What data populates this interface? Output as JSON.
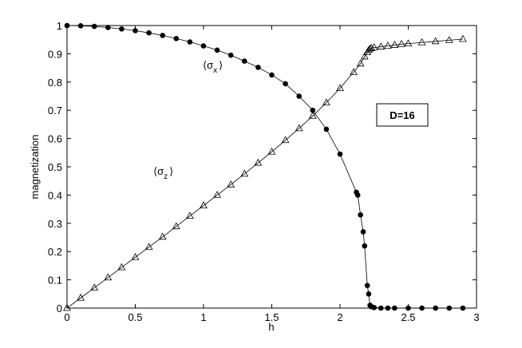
{
  "chart_data": {
    "type": "scatter",
    "x_label": "h",
    "y_label": "magnetization",
    "xlim": [
      0,
      3
    ],
    "ylim": [
      0,
      1
    ],
    "xticks": [
      0,
      0.5,
      1,
      1.5,
      2,
      2.5,
      3
    ],
    "yticks": [
      0,
      0.1,
      0.2,
      0.3,
      0.4,
      0.5,
      0.6,
      0.7,
      0.8,
      0.9,
      1
    ],
    "grid": false,
    "annotations": [
      {
        "base": "⟨σ",
        "sub": "x",
        "close": "⟩"
      },
      {
        "base": "⟨σ",
        "sub": "z",
        "close": "⟩"
      },
      {
        "text": "D=16",
        "boxed": true
      }
    ],
    "series": [
      {
        "marker": "circle",
        "color": "#000000",
        "x": [
          0,
          0.1,
          0.2,
          0.3,
          0.4,
          0.5,
          0.6,
          0.7,
          0.8,
          0.9,
          1.0,
          1.1,
          1.2,
          1.3,
          1.4,
          1.5,
          1.6,
          1.7,
          1.8,
          1.9,
          2.0,
          2.12,
          2.13,
          2.15,
          2.17,
          2.18,
          2.2,
          2.21,
          2.22,
          2.23,
          2.25,
          2.3,
          2.35,
          2.4,
          2.5,
          2.6,
          2.7,
          2.8,
          2.9
        ],
        "values": [
          1,
          0.999,
          0.997,
          0.993,
          0.988,
          0.982,
          0.974,
          0.965,
          0.954,
          0.942,
          0.928,
          0.913,
          0.895,
          0.874,
          0.852,
          0.825,
          0.794,
          0.75,
          0.7,
          0.633,
          0.545,
          0.41,
          0.4,
          0.33,
          0.27,
          0.22,
          0.08,
          0.05,
          0.01,
          0.005,
          0.002,
          0,
          0,
          0,
          0,
          0,
          0,
          0,
          0
        ]
      },
      {
        "marker": "triangle",
        "color": "#000000",
        "x": [
          0,
          0.1,
          0.2,
          0.3,
          0.4,
          0.5,
          0.6,
          0.7,
          0.8,
          0.9,
          1.0,
          1.1,
          1.2,
          1.3,
          1.4,
          1.5,
          1.6,
          1.7,
          1.8,
          1.9,
          2.0,
          2.1,
          2.15,
          2.18,
          2.2,
          2.21,
          2.22,
          2.23,
          2.25,
          2.3,
          2.35,
          2.4,
          2.45,
          2.5,
          2.6,
          2.7,
          2.8,
          2.9
        ],
        "values": [
          0,
          0.036,
          0.072,
          0.108,
          0.144,
          0.18,
          0.216,
          0.252,
          0.289,
          0.326,
          0.363,
          0.4,
          0.437,
          0.475,
          0.514,
          0.553,
          0.594,
          0.636,
          0.68,
          0.727,
          0.778,
          0.835,
          0.865,
          0.89,
          0.905,
          0.913,
          0.918,
          0.92,
          0.922,
          0.925,
          0.928,
          0.931,
          0.934,
          0.936,
          0.94,
          0.944,
          0.948,
          0.952
        ]
      }
    ]
  }
}
